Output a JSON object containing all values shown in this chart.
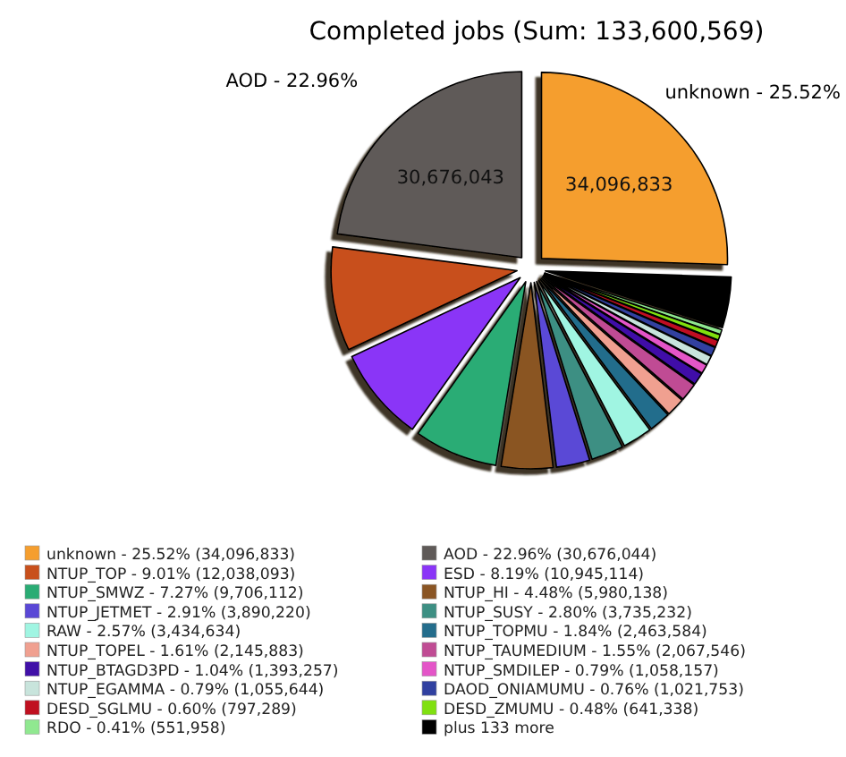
{
  "chart_data": {
    "type": "pie",
    "title": "Completed jobs (Sum: 133,600,569)",
    "categories": [
      "unknown - 25.52% (34,096,833)",
      "AOD - 22.96% (30,676,044)",
      "NTUP_TOP - 9.01% (12,038,093)",
      "ESD - 8.19% (10,945,114)",
      "NTUP_SMWZ - 7.27% (9,706,112)",
      "NTUP_HI - 4.48% (5,980,138)",
      "NTUP_JETMET - 2.91% (3,890,220)",
      "NTUP_SUSY - 2.80% (3,735,232)",
      "RAW - 2.57% (3,434,634)",
      "NTUP_TOPMU - 1.84% (2,463,584)",
      "NTUP_TOPEL - 1.61% (2,145,883)",
      "NTUP_TAUMEDIUM - 1.55% (2,067,546)",
      "NTUP_BTAGD3PD - 1.04% (1,393,257)",
      "NTUP_SMDILEP - 0.79% (1,058,157)",
      "NTUP_EGAMMA - 0.79% (1,055,644)",
      "DAOD_ONIAMUMU - 0.76% (1,021,753)",
      "DESD_SGLMU - 0.60% (797,289)",
      "DESD_ZMUMU - 0.48% (641,338)",
      "RDO - 0.41% (551,958)",
      "plus 133 more"
    ],
    "values": [
      34096833,
      30676043,
      12038093,
      10945114,
      9706112,
      5980138,
      3890220,
      3735232,
      3434634,
      2463584,
      2145883,
      2067546,
      1393257,
      1058157,
      1055644,
      1021753,
      797289,
      641338,
      551958,
      5901740
    ],
    "colors": [
      "#f59e2e",
      "#5f5a58",
      "#c8501c",
      "#8a35f7",
      "#2aac74",
      "#8a5524",
      "#5a48d6",
      "#3d8f83",
      "#a0f5e2",
      "#246d8c",
      "#f0a090",
      "#c04c94",
      "#4010a8",
      "#e455c8",
      "#c8e4dc",
      "#3040a0",
      "#c01020",
      "#80e010",
      "#90e890",
      "#000000"
    ],
    "value_labels": [
      "34,096,833",
      "30,676,043",
      null,
      null,
      null,
      null,
      null,
      null,
      null,
      null,
      null,
      null,
      null,
      null,
      null,
      null,
      null,
      null,
      null,
      null
    ],
    "annotations": [
      {
        "text": "unknown - 25.52%",
        "x": "unknown - 25.52% (34,096,833)"
      },
      {
        "text": "AOD - 22.96%",
        "x": "AOD - 22.96% (30,676,044)"
      }
    ],
    "legend": "bottom"
  }
}
